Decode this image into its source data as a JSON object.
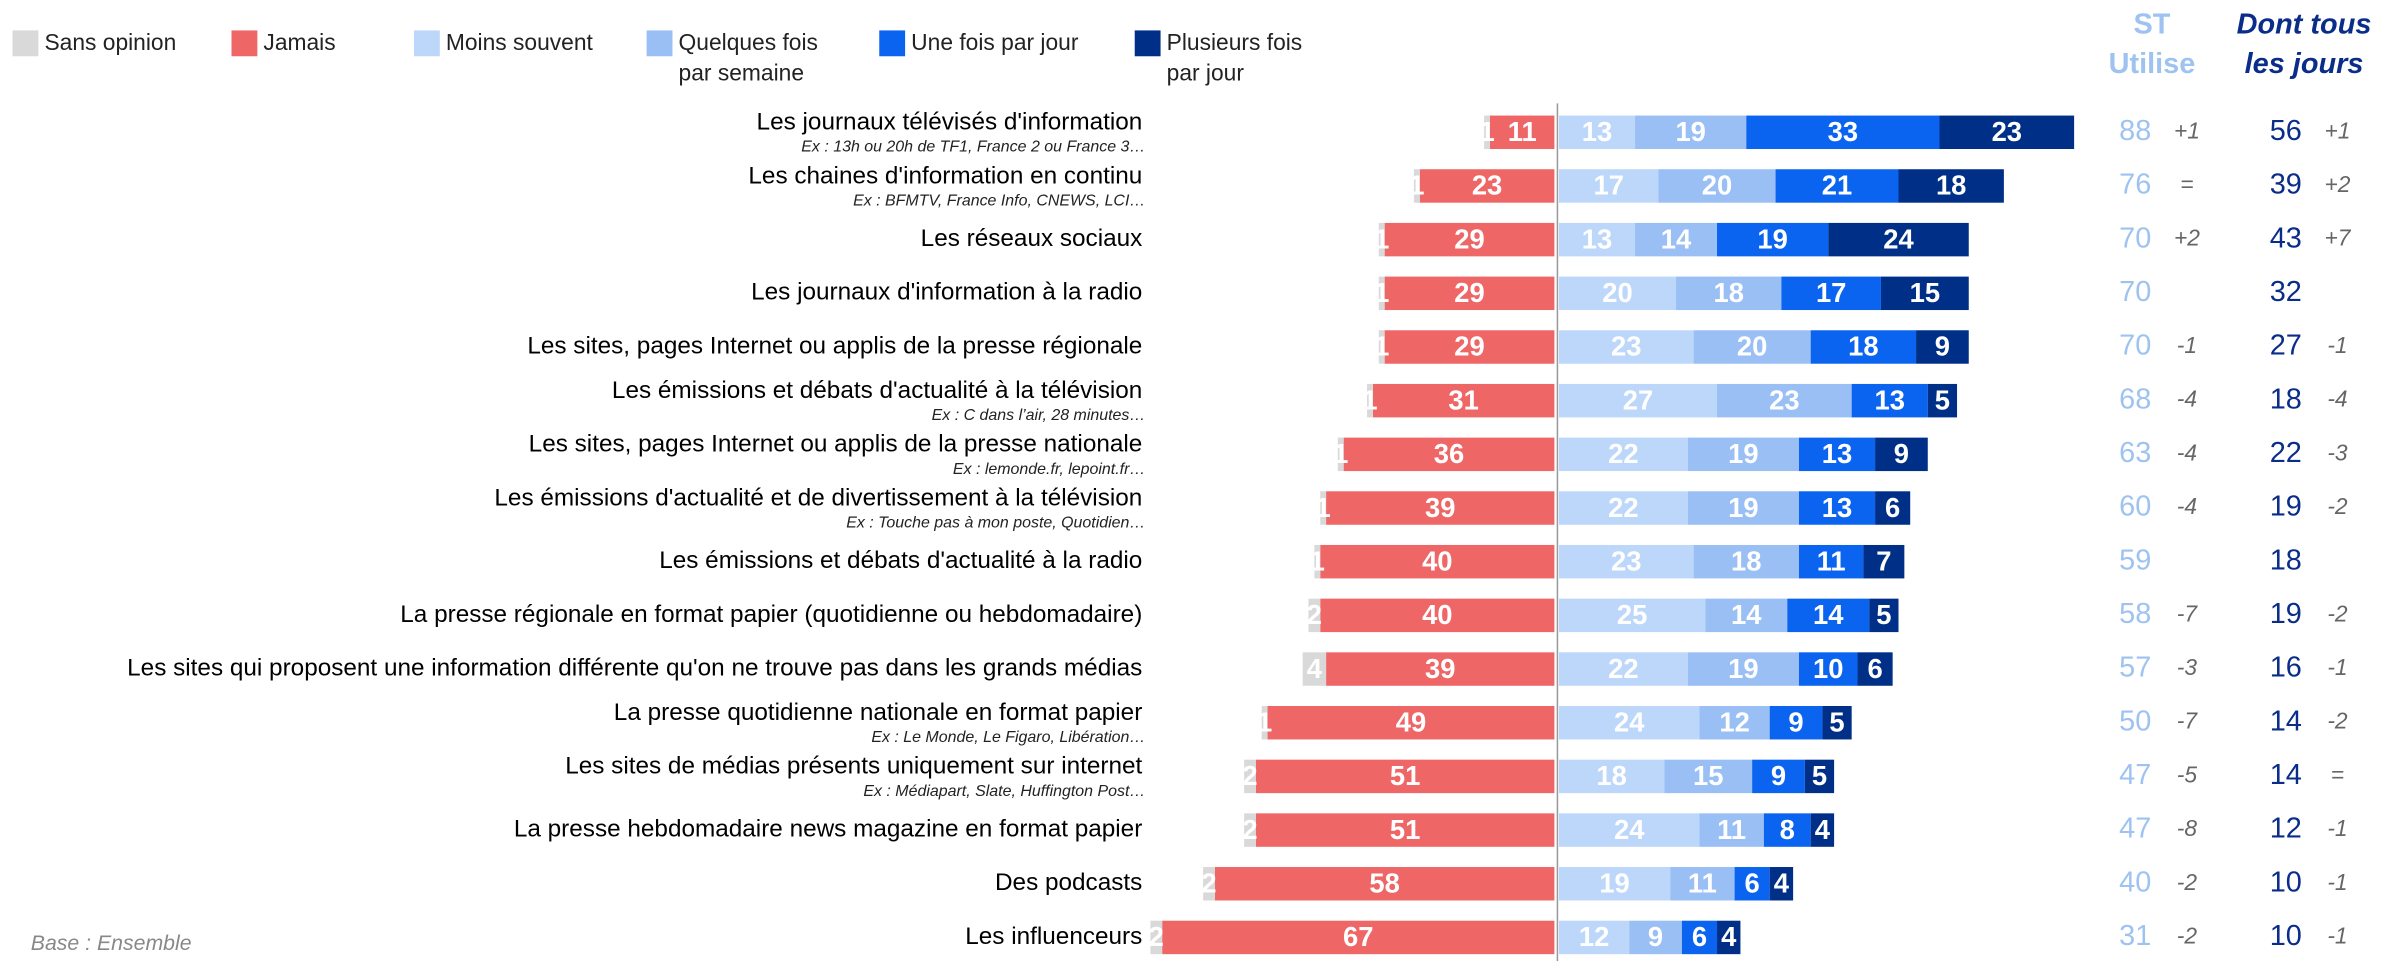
{
  "chart_data": {
    "type": "diverging_bar",
    "categories": [
      "Les journaux télévisés d'information",
      "Les chaines d'information en continu",
      "Les réseaux sociaux",
      "Les journaux d'information à la radio",
      "Les sites, pages Internet ou applis de la presse régionale",
      "Les émissions et débats d'actualité à la télévision",
      "Les sites, pages Internet ou applis de la presse nationale",
      "Les émissions d'actualité et de divertissement à la télévision",
      "Les émissions et débats d'actualité à la radio",
      "La presse régionale en format papier (quotidienne ou hebdomadaire)",
      "Les sites qui proposent une information différente qu'on ne trouve pas dans les grands médias",
      "La presse quotidienne nationale en format papier",
      "Les sites de médias présents uniquement sur internet",
      "La presse hebdomadaire news magazine en format papier",
      "Des podcasts",
      "Les influenceurs"
    ],
    "sublabels": [
      "Ex : 13h ou 20h de TF1, France 2 ou France 3…",
      "Ex : BFMTV, France Info, CNEWS, LCI…",
      null,
      null,
      null,
      "Ex : C dans l’air, 28 minutes…",
      "Ex : lemonde.fr, lepoint.fr…",
      "Ex : Touche pas à mon poste, Quotidien…",
      null,
      null,
      null,
      "Ex : Le Monde, Le Figaro, Libération…",
      "Ex : Médiapart, Slate, Huffington Post…",
      null,
      null,
      null
    ],
    "series": [
      {
        "name": "Sans opinion",
        "color": "#d9d9d9",
        "side": "left",
        "values": [
          1,
          1,
          1,
          1,
          1,
          1,
          1,
          1,
          1,
          2,
          4,
          1,
          2,
          2,
          2,
          2
        ]
      },
      {
        "name": "Jamais",
        "color": "#ee6666",
        "side": "left",
        "values": [
          11,
          23,
          29,
          29,
          29,
          31,
          36,
          39,
          40,
          40,
          39,
          49,
          51,
          51,
          58,
          67
        ]
      },
      {
        "name": "Moins souvent",
        "color": "#bdd7fa",
        "side": "right",
        "values": [
          13,
          17,
          13,
          20,
          23,
          27,
          22,
          22,
          23,
          25,
          22,
          24,
          18,
          24,
          19,
          12
        ]
      },
      {
        "name": "Quelques fois par semaine",
        "color": "#99bff5",
        "side": "right",
        "values": [
          19,
          20,
          14,
          18,
          20,
          23,
          19,
          19,
          18,
          14,
          19,
          12,
          15,
          11,
          11,
          9
        ]
      },
      {
        "name": "Une fois par jour",
        "color": "#0a64f0",
        "side": "right",
        "values": [
          33,
          21,
          19,
          17,
          18,
          13,
          13,
          13,
          11,
          14,
          10,
          9,
          9,
          8,
          6,
          6
        ]
      },
      {
        "name": "Plusieurs fois par jour",
        "color": "#002f87",
        "side": "right",
        "values": [
          23,
          18,
          24,
          15,
          9,
          5,
          9,
          6,
          7,
          5,
          6,
          5,
          5,
          4,
          4,
          4
        ]
      }
    ],
    "columns": [
      {
        "header": [
          "ST",
          "Utilise"
        ],
        "color": "#9ec3f0",
        "header_italic": false,
        "values": [
          88,
          76,
          70,
          70,
          70,
          68,
          63,
          60,
          59,
          58,
          57,
          50,
          47,
          47,
          40,
          31
        ],
        "changes": [
          "+1",
          "=",
          "+2",
          null,
          "-1",
          "-4",
          "-4",
          "-4",
          null,
          "-7",
          "-3",
          "-7",
          "-5",
          "-8",
          "-2",
          "-2"
        ]
      },
      {
        "header": [
          "Dont tous",
          "les jours"
        ],
        "color": "#0a2d8a",
        "header_italic": true,
        "values": [
          56,
          39,
          43,
          32,
          27,
          18,
          22,
          19,
          18,
          19,
          16,
          14,
          14,
          12,
          10,
          10
        ],
        "changes": [
          "+1",
          "+2",
          "+7",
          null,
          "-1",
          "-4",
          "-3",
          "-2",
          null,
          "-2",
          "-1",
          "-2",
          "=",
          "-1",
          "-1",
          "-1"
        ]
      }
    ],
    "footnote": "Base : Ensemble"
  }
}
